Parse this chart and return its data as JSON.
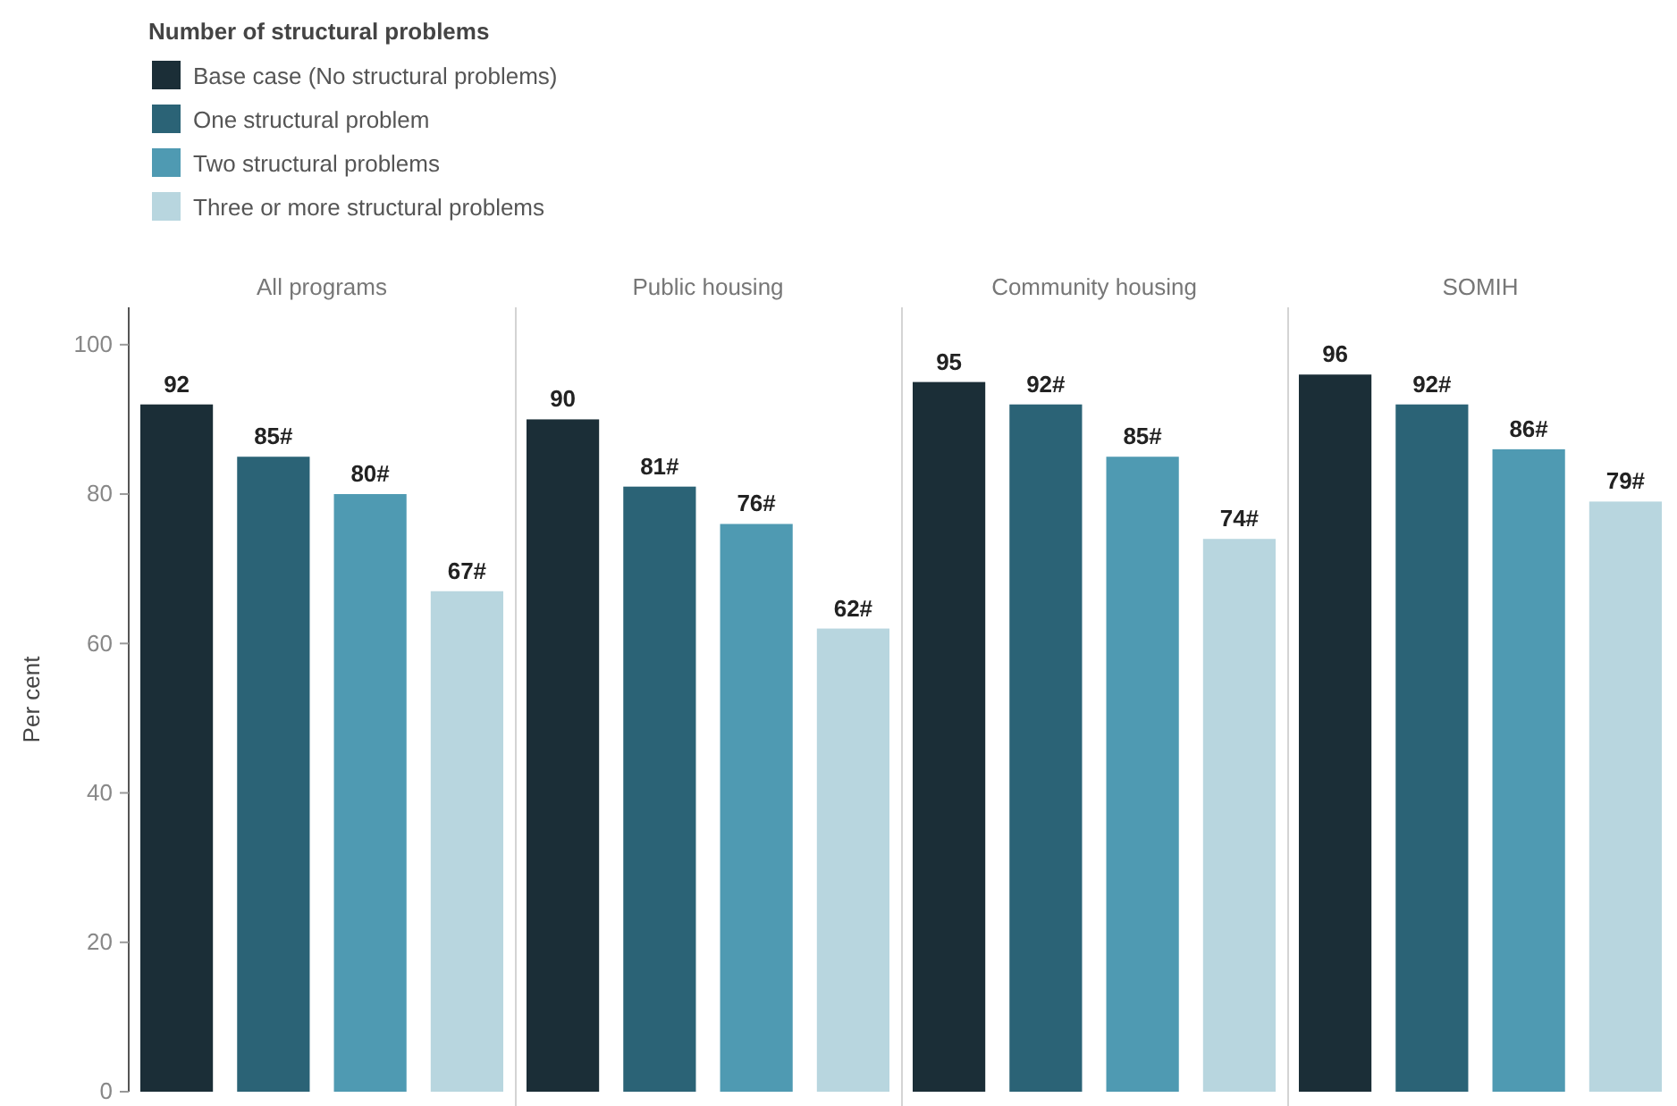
{
  "chart_data": {
    "type": "bar",
    "categories": [
      "All programs",
      "Public housing",
      "Community housing",
      "SOMIH"
    ],
    "series": [
      {
        "name": "Base case (No structural problems)",
        "color": "#1b2e37",
        "values": [
          92,
          90,
          95,
          96
        ],
        "value_labels": [
          "92",
          "90",
          "95",
          "96"
        ]
      },
      {
        "name": "One structural problem",
        "color": "#2b6376",
        "values": [
          85,
          81,
          92,
          92
        ],
        "value_labels": [
          "85#",
          "81#",
          "92#",
          "92#"
        ]
      },
      {
        "name": "Two structural problems",
        "color": "#4f9ab2",
        "values": [
          80,
          76,
          85,
          86
        ],
        "value_labels": [
          "80#",
          "76#",
          "85#",
          "86#"
        ]
      },
      {
        "name": "Three or more structural problems",
        "color": "#b8d6df",
        "values": [
          67,
          62,
          74,
          79
        ],
        "value_labels": [
          "67#",
          "62#",
          "74#",
          "79#"
        ]
      }
    ],
    "ylabel": "Per cent",
    "legend_title": "Number of structural problems",
    "legend": "top left",
    "ylim": [
      0,
      105
    ],
    "yticks": [
      0,
      20,
      40,
      60,
      80,
      100
    ]
  }
}
